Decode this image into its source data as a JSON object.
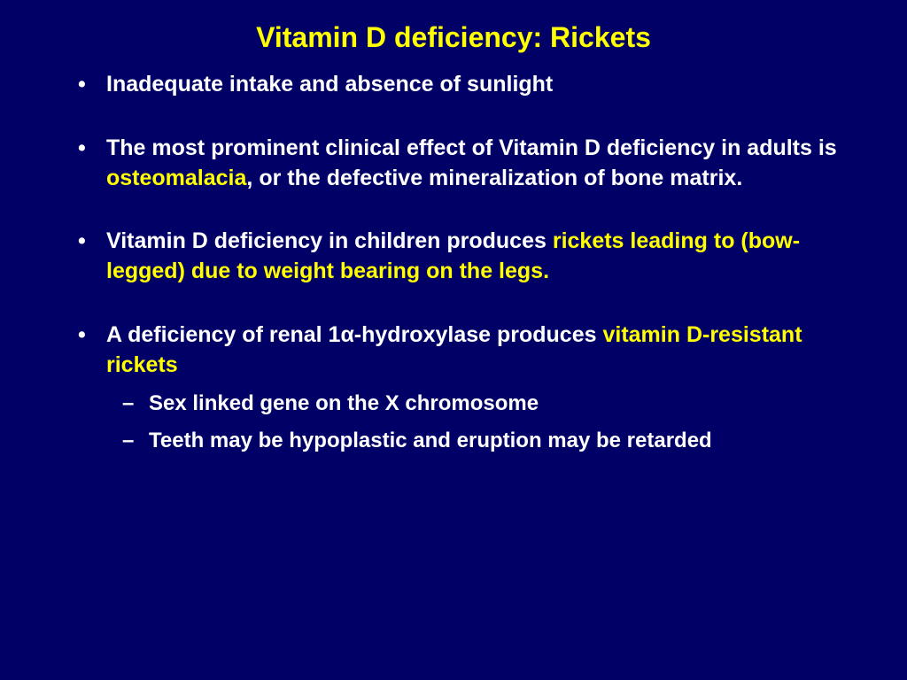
{
  "colors": {
    "background": "#000066",
    "title": "#ffff00",
    "body_text": "#ffffff",
    "highlight": "#ffff00"
  },
  "typography": {
    "title_fontsize": 32,
    "body_fontsize": 25,
    "sub_fontsize": 24,
    "font_family": "Arial",
    "weight": "bold"
  },
  "title": "Vitamin D deficiency:  Rickets",
  "bullets": {
    "b1": "Inadequate intake and absence of sunlight",
    "b2_pre": "The most prominent clinical effect of Vitamin D deficiency in adults is ",
    "b2_hl": "osteomalacia",
    "b2_post": ", or the defective mineralization of bone matrix.",
    "b3_pre": "Vitamin D deficiency in children produces ",
    "b3_hl": "rickets leading to (bow-legged) due to weight bearing on the legs.",
    "b4_pre": "A deficiency of renal 1α-hydroxylase produces ",
    "b4_hl": "vitamin D-resistant rickets",
    "b4_sub1": "Sex linked gene on the X chromosome",
    "b4_sub2": "Teeth may be hypoplastic and eruption may be retarded"
  }
}
